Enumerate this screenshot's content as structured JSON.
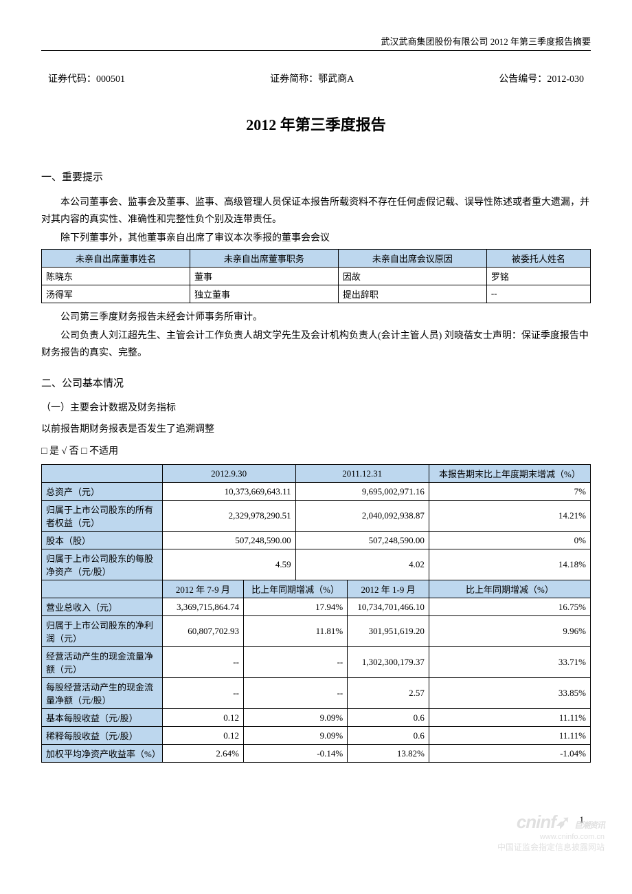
{
  "header": {
    "top_right": "武汉武商集团股份有限公司 2012 年第三季度报告摘要"
  },
  "codes": {
    "sec_code_label": "证券代码：",
    "sec_code": "000501",
    "sec_name_label": "证券简称：",
    "sec_name": "鄂武商A",
    "ann_no_label": "公告编号：",
    "ann_no": "2012-030"
  },
  "title": "2012 年第三季度报告",
  "s1": {
    "heading": "一、重要提示",
    "p1": "本公司董事会、监事会及董事、监事、高级管理人员保证本报告所载资料不存在任何虚假记载、误导性陈述或者重大遗漏，并对其内容的真实性、准确性和完整性负个别及连带责任。",
    "p2": "除下列董事外，其他董事亲自出席了审议本次季报的董事会会议"
  },
  "table1": {
    "header_bg": "#bdd7ee",
    "border_color": "#000000",
    "columns": [
      "未亲自出席董事姓名",
      "未亲自出席董事职务",
      "未亲自出席会议原因",
      "被委托人姓名"
    ],
    "rows": [
      [
        "陈晓东",
        "董事",
        "因故",
        "罗铭"
      ],
      [
        "汤得军",
        "独立董事",
        "提出辞职",
        "--"
      ]
    ]
  },
  "s1b": {
    "p3": "公司第三季度财务报告未经会计师事务所审计。",
    "p4": "公司负责人刘江超先生、主管会计工作负责人胡文学先生及会计机构负责人(会计主管人员) 刘晓蓓女士声明：保证季度报告中财务报告的真实、完整。"
  },
  "s2": {
    "heading": "二、公司基本情况",
    "sub1": "（一）主要会计数据及财务指标",
    "q": "以前报告期财务报表是否发生了追溯调整",
    "chk": "□ 是 √ 否 □ 不适用"
  },
  "table2": {
    "header_bg": "#bdd7ee",
    "border_color": "#000000",
    "top": {
      "blank": "",
      "c1": "2012.9.30",
      "c2": "2011.12.31",
      "c3": "本报告期末比上年度期末增减（%）"
    },
    "rows_top": [
      {
        "label": "总资产（元）",
        "v1": "10,373,669,643.11",
        "v2": "9,695,002,971.16",
        "v3": "7%"
      },
      {
        "label": "归属于上市公司股东的所有者权益（元）",
        "v1": "2,329,978,290.51",
        "v2": "2,040,092,938.87",
        "v3": "14.21%"
      },
      {
        "label": "股本（股）",
        "v1": "507,248,590.00",
        "v2": "507,248,590.00",
        "v3": "0%"
      },
      {
        "label": "归属于上市公司股东的每股净资产（元/股）",
        "v1": "4.59",
        "v2": "4.02",
        "v3": "14.18%"
      }
    ],
    "mid": {
      "c1": "2012 年 7-9 月",
      "c2": "比上年同期增减（%）",
      "c3": "2012 年 1-9 月",
      "c4": "比上年同期增减（%）"
    },
    "rows_bot": [
      {
        "label": "营业总收入（元）",
        "v1": "3,369,715,864.74",
        "v2": "17.94%",
        "v3": "10,734,701,466.10",
        "v4": "16.75%"
      },
      {
        "label": "归属于上市公司股东的净利润（元）",
        "v1": "60,807,702.93",
        "v2": "11.81%",
        "v3": "301,951,619.20",
        "v4": "9.96%"
      },
      {
        "label": "经营活动产生的现金流量净额（元）",
        "v1": "--",
        "v2": "--",
        "v3": "1,302,300,179.37",
        "v4": "33.71%"
      },
      {
        "label": "每股经营活动产生的现金流量净额（元/股）",
        "v1": "--",
        "v2": "--",
        "v3": "2.57",
        "v4": "33.85%"
      },
      {
        "label": "基本每股收益（元/股）",
        "v1": "0.12",
        "v2": "9.09%",
        "v3": "0.6",
        "v4": "11.11%"
      },
      {
        "label": "稀释每股收益（元/股）",
        "v1": "0.12",
        "v2": "9.09%",
        "v3": "0.6",
        "v4": "11.11%"
      },
      {
        "label": "加权平均净资产收益率（%）",
        "v1": "2.64%",
        "v2": "-0.14%",
        "v3": "13.82%",
        "v4": "-1.04%"
      }
    ]
  },
  "page_number": "1",
  "watermark": {
    "logo": "cninf",
    "cn": "巨潮资讯",
    "url": "www.cninfo.com.cn",
    "bottom": "中国证监会指定信息披露网站"
  }
}
